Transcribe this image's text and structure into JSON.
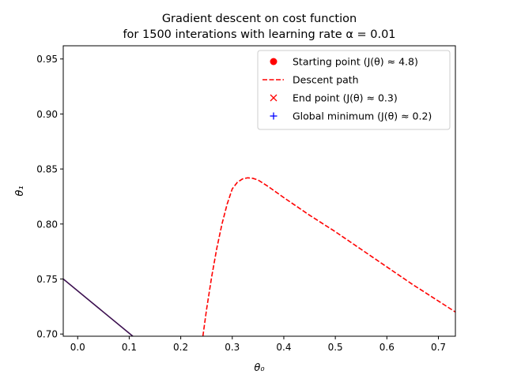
{
  "chart_data": {
    "type": "line",
    "title_line1": "Gradient descent on cost function",
    "title_line2": "for 1500 interations with learning rate α = 0.01",
    "xlabel": "θ₀",
    "ylabel": "θ₁",
    "xlim": [
      -0.028,
      0.733
    ],
    "ylim": [
      0.698,
      0.962
    ],
    "xticks": [
      0.0,
      0.1,
      0.2,
      0.3,
      0.4,
      0.5,
      0.6,
      0.7
    ],
    "yticks": [
      0.7,
      0.75,
      0.8,
      0.85,
      0.9,
      0.95
    ],
    "xtick_labels": [
      "0.0",
      "0.1",
      "0.2",
      "0.3",
      "0.4",
      "0.5",
      "0.6",
      "0.7"
    ],
    "ytick_labels": [
      "0.70",
      "0.75",
      "0.80",
      "0.85",
      "0.90",
      "0.95"
    ],
    "legend_position": "top-right",
    "legend": [
      {
        "label": "Starting point (J(θ) ≈ 4.8)",
        "marker": "circle",
        "color": "#ff0000"
      },
      {
        "label": "Descent path",
        "marker": "dashed-line",
        "color": "#ff0000"
      },
      {
        "label": "End point (J(θ) ≈ 0.3)",
        "marker": "x",
        "color": "#ff0000"
      },
      {
        "label": "Global minimum (J(θ) ≈ 0.2)",
        "marker": "plus",
        "color": "#0000ff"
      }
    ],
    "series": [
      {
        "name": "Descent path",
        "style": "dashed",
        "color": "#ff0000",
        "x": [
          0.243,
          0.25,
          0.26,
          0.27,
          0.28,
          0.29,
          0.3,
          0.31,
          0.32,
          0.33,
          0.34,
          0.35,
          0.37,
          0.4,
          0.45,
          0.5,
          0.55,
          0.6,
          0.65,
          0.7,
          0.733
        ],
        "y": [
          0.698,
          0.722,
          0.752,
          0.778,
          0.8,
          0.818,
          0.832,
          0.838,
          0.841,
          0.842,
          0.8415,
          0.84,
          0.834,
          0.824,
          0.808,
          0.793,
          0.777,
          0.761,
          0.745,
          0.73,
          0.72
        ]
      },
      {
        "style": "solid",
        "color": "#3b0f4f",
        "x": [
          -0.028,
          0.107
        ],
        "y": [
          0.75,
          0.698
        ]
      }
    ]
  }
}
